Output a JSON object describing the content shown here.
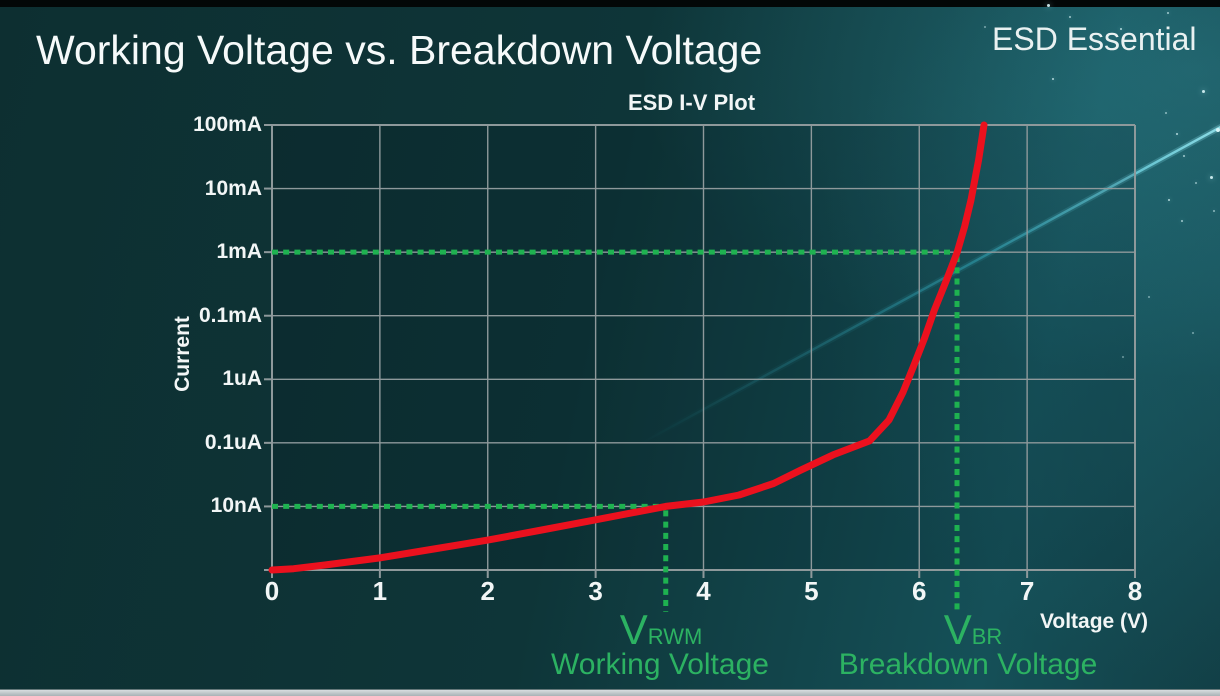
{
  "slide": {
    "title": "Working Voltage vs. Breakdown Voltage",
    "brand": "ESD Essential"
  },
  "chart_data": {
    "type": "line",
    "title": "ESD I-V Plot",
    "xlabel": "Voltage (V)",
    "ylabel": "Current",
    "x_ticks": [
      "0",
      "1",
      "2",
      "3",
      "4",
      "5",
      "6",
      "7",
      "8"
    ],
    "x_range": [
      0,
      8
    ],
    "y_ticks": [
      "100mA",
      "10mA",
      "1mA",
      "0.1mA",
      "1uA",
      "0.1uA",
      "10nA"
    ],
    "y_axis_note": "log-style current axis; one labeled gridline per step from 100mA at the top line down to 10nA; bottom plot edge unlabeled",
    "grid": true,
    "legend_position": "none",
    "colors": {
      "curve": "#eb111e",
      "marker_dots": "#1eb250",
      "marker_text": "#2cb262",
      "grid": "#8e999b",
      "text": "#f2f6f6",
      "background": "#0e3538"
    },
    "points_format": "[voltage_V, gridline_steps_below_100mA_line] where 0=100mA line, 2=1mA line, 6=10nA line, 7=bottom edge",
    "series": [
      {
        "name": "ESD protection device I-V curve",
        "color": "#eb111e",
        "points": [
          [
            0,
            7.0
          ],
          [
            0.2,
            6.98
          ],
          [
            0.5,
            6.92
          ],
          [
            1.0,
            6.81
          ],
          [
            1.5,
            6.67
          ],
          [
            2.0,
            6.53
          ],
          [
            2.5,
            6.37
          ],
          [
            3.0,
            6.21
          ],
          [
            3.65,
            6.0
          ],
          [
            4.0,
            5.93
          ],
          [
            4.33,
            5.82
          ],
          [
            4.65,
            5.64
          ],
          [
            4.9,
            5.43
          ],
          [
            5.2,
            5.19
          ],
          [
            5.54,
            4.97
          ],
          [
            5.72,
            4.64
          ],
          [
            5.85,
            4.2
          ],
          [
            5.95,
            3.78
          ],
          [
            6.05,
            3.35
          ],
          [
            6.14,
            2.91
          ],
          [
            6.25,
            2.45
          ],
          [
            6.35,
            2.01
          ],
          [
            6.42,
            1.6
          ],
          [
            6.48,
            1.18
          ],
          [
            6.55,
            0.55
          ],
          [
            6.6,
            0.0
          ]
        ]
      }
    ],
    "annotations": [
      {
        "id": "vrwm",
        "symbol": "V",
        "subscript": "RWM",
        "caption": "Working Voltage",
        "voltage": 3.65,
        "current": "10nA"
      },
      {
        "id": "vbr",
        "symbol": "V",
        "subscript": "BR",
        "caption": "Breakdown Voltage",
        "voltage": 6.35,
        "current": "1mA"
      }
    ]
  }
}
